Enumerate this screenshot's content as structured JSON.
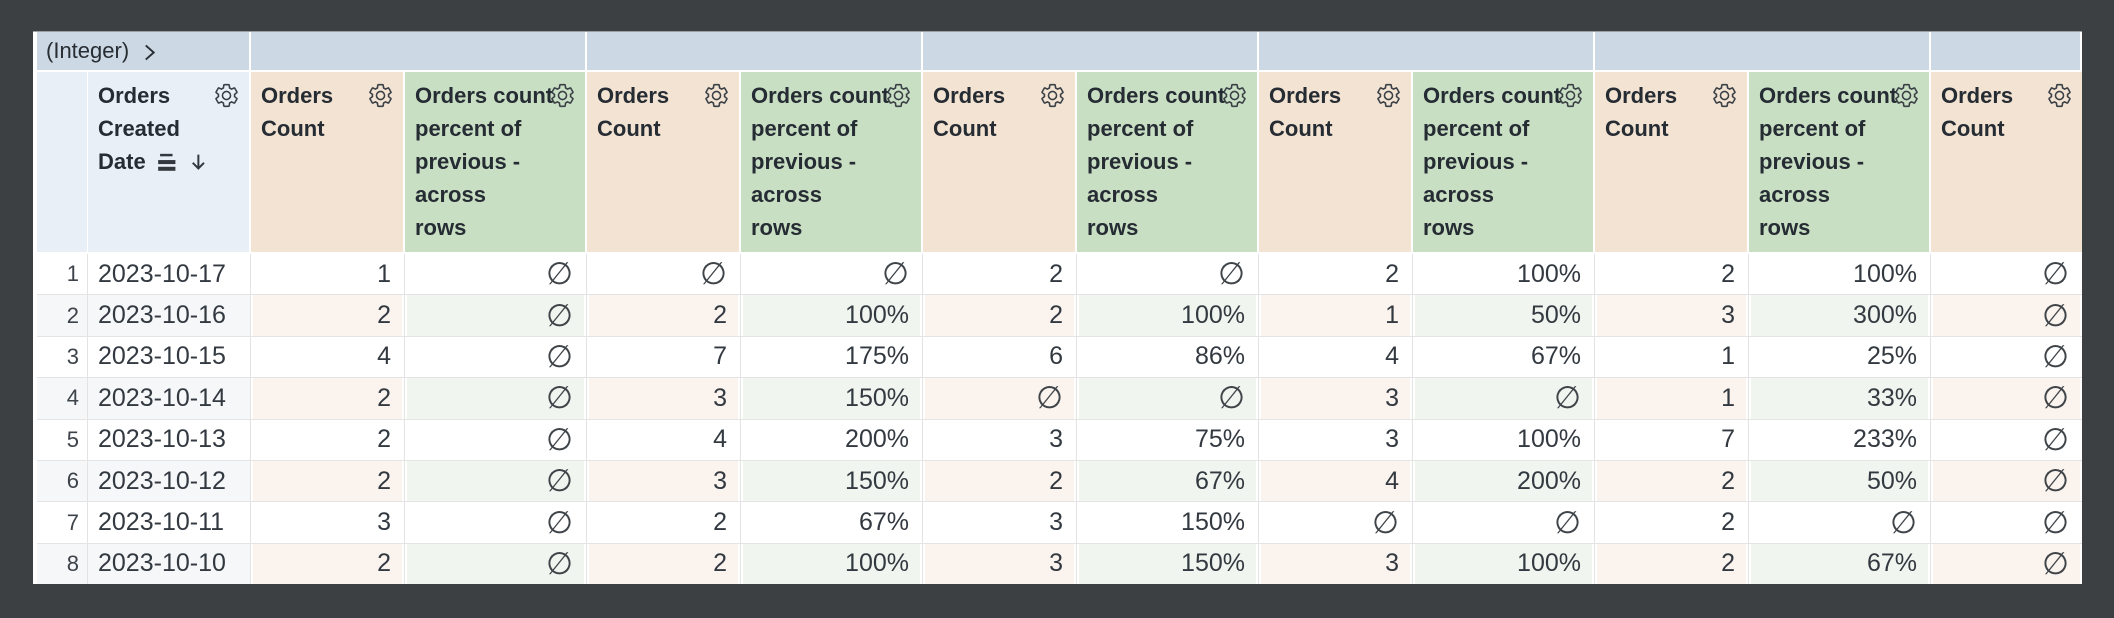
{
  "pivot": {
    "field_label": "(Integer)",
    "chevron_icon": "chevron-right",
    "group_count": 5,
    "trailing_partial_group": true
  },
  "header": {
    "row_number_label": "",
    "dimension": {
      "label": "Orders Created Date",
      "lines": [
        "Orders",
        "Created",
        "Date"
      ],
      "sort_icon": "sort-descending-arrow",
      "subtotal_icon": "subtotal-bars",
      "gear_icon": "gear"
    },
    "count": {
      "label": "Orders Count",
      "lines": [
        "Orders",
        "Count"
      ],
      "gear_icon": "gear"
    },
    "percent": {
      "label": "Orders count percent of previous - across rows",
      "lines": [
        "Orders count",
        "percent of",
        "previous -",
        "across",
        "rows"
      ],
      "gear_icon": "gear"
    }
  },
  "column_layout": [
    "rownum",
    "dimension",
    "count",
    "percent",
    "count",
    "percent",
    "count",
    "percent",
    "count",
    "percent",
    "count",
    "percent",
    "count"
  ],
  "null_symbol": "∅",
  "rows": [
    {
      "num": "1",
      "date": "2023-10-17",
      "values": [
        "1",
        "∅",
        "∅",
        "∅",
        "2",
        "∅",
        "2",
        "100%",
        "2",
        "100%",
        "∅"
      ]
    },
    {
      "num": "2",
      "date": "2023-10-16",
      "values": [
        "2",
        "∅",
        "2",
        "100%",
        "2",
        "100%",
        "1",
        "50%",
        "3",
        "300%",
        "∅"
      ]
    },
    {
      "num": "3",
      "date": "2023-10-15",
      "values": [
        "4",
        "∅",
        "7",
        "175%",
        "6",
        "86%",
        "4",
        "67%",
        "1",
        "25%",
        "∅"
      ]
    },
    {
      "num": "4",
      "date": "2023-10-14",
      "values": [
        "2",
        "∅",
        "3",
        "150%",
        "∅",
        "∅",
        "3",
        "∅",
        "1",
        "33%",
        "∅"
      ]
    },
    {
      "num": "5",
      "date": "2023-10-13",
      "values": [
        "2",
        "∅",
        "4",
        "200%",
        "3",
        "75%",
        "3",
        "100%",
        "7",
        "233%",
        "∅"
      ]
    },
    {
      "num": "6",
      "date": "2023-10-12",
      "values": [
        "2",
        "∅",
        "3",
        "150%",
        "2",
        "67%",
        "4",
        "200%",
        "2",
        "50%",
        "∅"
      ]
    },
    {
      "num": "7",
      "date": "2023-10-11",
      "values": [
        "3",
        "∅",
        "2",
        "67%",
        "3",
        "150%",
        "∅",
        "∅",
        "2",
        "∅",
        "∅"
      ]
    },
    {
      "num": "8",
      "date": "2023-10-10",
      "values": [
        "2",
        "∅",
        "2",
        "100%",
        "3",
        "150%",
        "3",
        "100%",
        "2",
        "67%",
        "∅"
      ]
    }
  ],
  "colors": {
    "frame": "#3c4043",
    "pivot_band": "#ccd8e3",
    "dimension_header": "#e9eff6",
    "count_header": "#f2e3d2",
    "percent_header": "#c9dfc4",
    "even_row_dimension": "#f5f7f9",
    "even_row_count": "#faf3ee",
    "even_row_percent": "#f0f6ef",
    "grid_line": "#e3e3e3",
    "text": "#333940"
  }
}
